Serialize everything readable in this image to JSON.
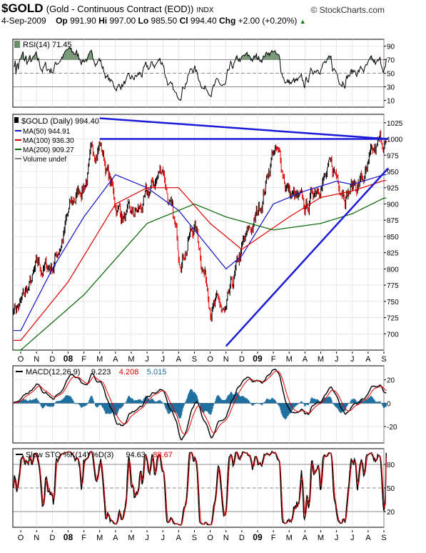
{
  "header": {
    "symbol": "$GOLD",
    "name": "(Gold - Continuous Contract (EOD))",
    "exchange": "INDX",
    "brand": "© StockCharts.com",
    "date": "4-Sep-2009",
    "open_label": "Op",
    "open": "991.90",
    "high_label": "Hi",
    "high": "997.00",
    "low_label": "Lo",
    "low": "985.50",
    "close_label": "Cl",
    "close": "994.40",
    "chg_label": "Chg",
    "chg": "+2.00 (+0.20%)",
    "arrow": "▲"
  },
  "months": [
    "O",
    "N",
    "D",
    "08",
    "F",
    "M",
    "A",
    "M",
    "J",
    "J",
    "A",
    "S",
    "O",
    "N",
    "D",
    "09",
    "F",
    "M",
    "A",
    "M",
    "J",
    "J",
    "A",
    "S"
  ],
  "bold_months": [
    "08",
    "09"
  ],
  "colors": {
    "price": "#000000",
    "ma50": "#1010c8",
    "ma100": "#e00000",
    "ma200": "#006400",
    "trend": "#1a1ad8",
    "macd": "#000000",
    "signal": "#e00000",
    "hist": "#1f6fa0",
    "stoK": "#000000",
    "stoD": "#e00000"
  },
  "rsi": {
    "legend": "RSI(14) 71.45",
    "ticks": [
      "90",
      "70",
      "50",
      "30",
      "10"
    ],
    "tick_values": [
      90,
      70,
      50,
      30,
      10
    ],
    "range": [
      0,
      100
    ],
    "ref_lines": [
      70,
      50,
      30
    ],
    "last": 71.45
  },
  "price": {
    "legend_title": "$GOLD (Daily) 994.40",
    "legend": [
      {
        "label": "MA(50) 944.91",
        "color": "#1010c8"
      },
      {
        "label": "MA(100) 936.30",
        "color": "#e00000"
      },
      {
        "label": "MA(200) 909.27",
        "color": "#006400"
      },
      {
        "label": "Volume undef",
        "color": "#808080"
      }
    ],
    "ticks": [
      "1025",
      "1000",
      "975",
      "950",
      "925",
      "900",
      "875",
      "850",
      "825",
      "800",
      "775",
      "750",
      "725",
      "700"
    ],
    "tick_values": [
      1025,
      1000,
      975,
      950,
      925,
      900,
      875,
      850,
      825,
      800,
      775,
      750,
      725,
      700
    ],
    "range": [
      675,
      1038
    ],
    "last_close": 994.4
  },
  "macd": {
    "legend_a": "MACD(12,26,9)",
    "legend_b": "9.223",
    "legend_c": "4.208",
    "legend_d": "5.015",
    "ticks": [
      "20",
      "0",
      "-20"
    ],
    "tick_values": [
      20,
      0,
      -20
    ],
    "range": [
      -34,
      32
    ]
  },
  "sto": {
    "legend_a": "Slow STO %K(14) %D(3)",
    "legend_b": "94.63",
    "legend_c": "88.67",
    "ticks": [
      "80",
      "50",
      "20"
    ],
    "tick_values": [
      80,
      50,
      20
    ],
    "range": [
      0,
      100
    ],
    "ref_lines": [
      80,
      50,
      20
    ]
  },
  "chart_data": {
    "type": "line",
    "title": "$GOLD (Gold - Continuous Contract (EOD)) INDX",
    "x_label": "",
    "y_label": "",
    "x_range": [
      "2007-10",
      "2009-09"
    ],
    "y_range": [
      675,
      1038
    ],
    "series": [
      {
        "name": "$GOLD (Daily) 994.40",
        "x": [
          "2007-10",
          "2007-11",
          "2007-12",
          "2008-01",
          "2008-02",
          "2008-03",
          "2008-04",
          "2008-05",
          "2008-06",
          "2008-07",
          "2008-08",
          "2008-09",
          "2008-10",
          "2008-11",
          "2008-12",
          "2009-01",
          "2009-02",
          "2009-03",
          "2009-04",
          "2009-05",
          "2009-06",
          "2009-07",
          "2009-08",
          "2009-09"
        ],
        "values": [
          745,
          790,
          805,
          880,
          935,
          1000,
          900,
          870,
          900,
          960,
          820,
          870,
          760,
          720,
          820,
          880,
          990,
          920,
          880,
          950,
          940,
          930,
          945,
          994.4
        ]
      },
      {
        "name": "MA(50) 944.91",
        "x": [
          "2007-10",
          "2007-12",
          "2008-02",
          "2008-04",
          "2008-06",
          "2008-08",
          "2008-09",
          "2008-11",
          "2008-12",
          "2009-02",
          "2009-04",
          "2009-06",
          "2009-07",
          "2009-09"
        ],
        "values": [
          705,
          800,
          880,
          945,
          925,
          890,
          860,
          800,
          820,
          900,
          920,
          935,
          930,
          945
        ]
      },
      {
        "name": "MA(100) 936.30",
        "x": [
          "2007-10",
          "2008-01",
          "2008-04",
          "2008-06",
          "2008-08",
          "2008-10",
          "2008-12",
          "2009-03",
          "2009-05",
          "2009-07",
          "2009-09"
        ],
        "values": [
          690,
          780,
          900,
          925,
          925,
          870,
          830,
          880,
          910,
          920,
          936
        ]
      },
      {
        "name": "MA(200) 909.27",
        "x": [
          "2007-10",
          "2008-02",
          "2008-06",
          "2008-09",
          "2008-11",
          "2009-02",
          "2009-05",
          "2009-07",
          "2009-09"
        ],
        "values": [
          675,
          760,
          870,
          900,
          880,
          860,
          870,
          885,
          909
        ]
      }
    ],
    "trendlines": [
      {
        "x": [
          "2008-03",
          "2009-09"
        ],
        "values": [
          1032,
          1000
        ]
      },
      {
        "x": [
          "2008-03",
          "2009-09"
        ],
        "values": [
          1000,
          1000
        ]
      },
      {
        "x": [
          "2008-11",
          "2009-09"
        ],
        "values": [
          681,
          955
        ]
      }
    ]
  }
}
